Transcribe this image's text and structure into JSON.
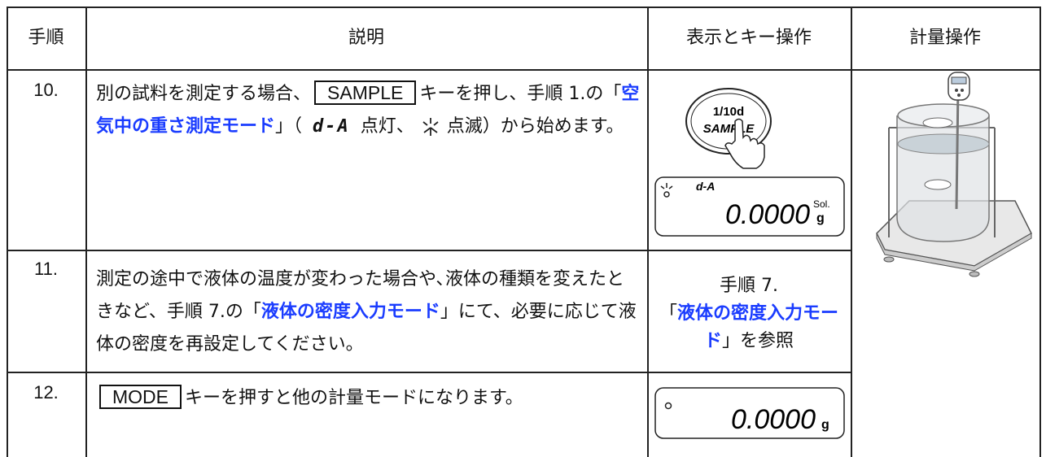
{
  "table": {
    "header": [
      "手順",
      "説明",
      "表示とキー操作",
      "計量操作"
    ],
    "rows": [
      {
        "step": "10.",
        "description": [
          {
            "text": "別の試料を測定する場合、",
            "style": "plain"
          },
          {
            "text": "SAMPLE",
            "style": "key"
          },
          {
            "text": "キーを押し、手順 1.の「",
            "style": "plain"
          },
          {
            "text": "空気中の重さ測定モード",
            "style": "link"
          },
          {
            "text": "」（ ",
            "style": "plain"
          },
          {
            "text": "d-A",
            "style": "segment"
          },
          {
            "text": " 点灯、 ",
            "style": "plain"
          },
          {
            "text": "",
            "style": "blink-icon"
          },
          {
            "text": " 点滅）から始めます。",
            "style": "plain"
          }
        ],
        "display": {
          "button_top": "1/10d",
          "button_bottom": "SAMPLE",
          "mode": "d-A",
          "reading": "0.0000",
          "unit_top": "Sol.",
          "unit": "g"
        }
      },
      {
        "step": "11.",
        "description": [
          {
            "text": "測定の途中で液体の温度が変わった場合や､液体の種類を変えたときなど、手順 7.の「",
            "style": "plain"
          },
          {
            "text": "液体の密度入力モード",
            "style": "link"
          },
          {
            "text": "」にて、必要に応じて液体の密度を再設定してください。",
            "style": "plain"
          }
        ],
        "display": {
          "reference": [
            "手順 7.",
            "「",
            "液体の密度入力モード",
            "」を参照"
          ]
        }
      },
      {
        "step": "12.",
        "description": [
          {
            "text": "MODE",
            "style": "key"
          },
          {
            "text": "キーを押すと他の計量モードになります。",
            "style": "plain"
          }
        ],
        "display": {
          "reading": "0.0000",
          "unit": "g"
        }
      }
    ]
  }
}
